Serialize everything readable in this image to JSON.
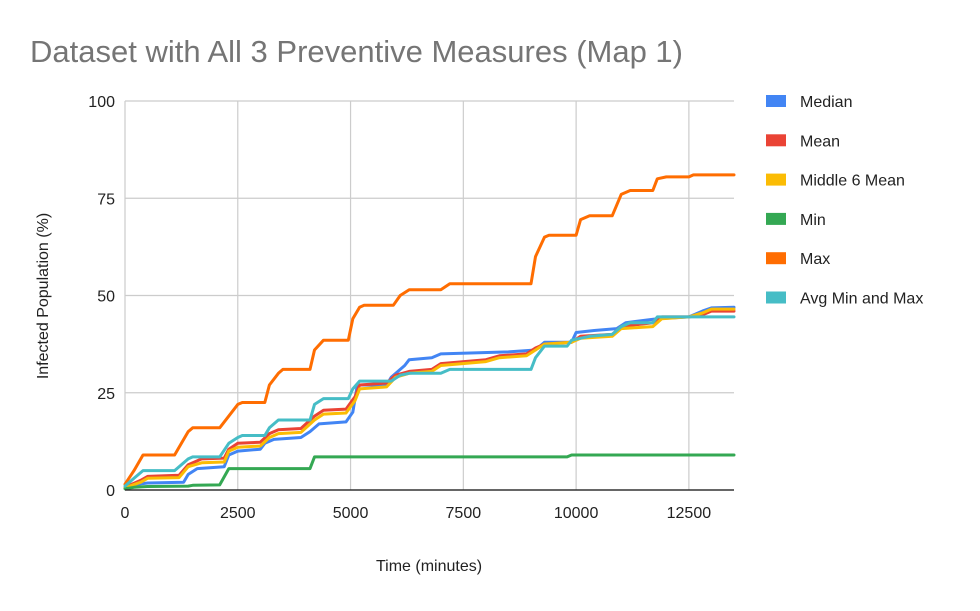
{
  "chart_data": {
    "type": "line",
    "title": "Dataset with All 3 Preventive Measures (Map 1)",
    "xlabel": "Time (minutes)",
    "ylabel": "Infected Population (%)",
    "xlim": [
      0,
      13500
    ],
    "ylim": [
      0,
      100
    ],
    "xticks": [
      0,
      2500,
      5000,
      7500,
      10000,
      12500
    ],
    "yticks": [
      0,
      25,
      50,
      75,
      100
    ],
    "grid": true,
    "legend_position": "right",
    "series": [
      {
        "name": "Median",
        "color": "#4285f4",
        "points": [
          [
            0,
            0.5
          ],
          [
            100,
            1
          ],
          [
            300,
            1.5
          ],
          [
            500,
            1.8
          ],
          [
            1300,
            2
          ],
          [
            1400,
            4
          ],
          [
            1600,
            5.5
          ],
          [
            2200,
            6
          ],
          [
            2300,
            9
          ],
          [
            2500,
            10
          ],
          [
            3000,
            10.5
          ],
          [
            3100,
            12
          ],
          [
            3300,
            13
          ],
          [
            3900,
            13.5
          ],
          [
            4100,
            15
          ],
          [
            4300,
            17
          ],
          [
            4900,
            17.5
          ],
          [
            5050,
            20
          ],
          [
            5150,
            27
          ],
          [
            5800,
            27
          ],
          [
            5900,
            29
          ],
          [
            6200,
            32
          ],
          [
            6300,
            33.5
          ],
          [
            6800,
            34
          ],
          [
            7000,
            35
          ],
          [
            8500,
            35.5
          ],
          [
            9100,
            36
          ],
          [
            9300,
            38
          ],
          [
            9900,
            38
          ],
          [
            10000,
            40.5
          ],
          [
            10400,
            41
          ],
          [
            10900,
            41.5
          ],
          [
            11100,
            43
          ],
          [
            11800,
            44
          ],
          [
            12500,
            44.5
          ],
          [
            12800,
            46
          ],
          [
            13000,
            46.8
          ],
          [
            13500,
            47
          ]
        ]
      },
      {
        "name": "Mean",
        "color": "#ea4335",
        "points": [
          [
            0,
            0.5
          ],
          [
            150,
            1.5
          ],
          [
            350,
            2.5
          ],
          [
            500,
            3.5
          ],
          [
            1200,
            3.8
          ],
          [
            1400,
            6.5
          ],
          [
            1700,
            8
          ],
          [
            2200,
            8.2
          ],
          [
            2300,
            10.5
          ],
          [
            2500,
            12
          ],
          [
            3000,
            12.3
          ],
          [
            3200,
            14.5
          ],
          [
            3400,
            15.5
          ],
          [
            3900,
            15.8
          ],
          [
            4200,
            19
          ],
          [
            4400,
            20.5
          ],
          [
            4900,
            20.8
          ],
          [
            5100,
            24
          ],
          [
            5200,
            27
          ],
          [
            5800,
            27.5
          ],
          [
            6000,
            29.5
          ],
          [
            6300,
            30.5
          ],
          [
            6800,
            31
          ],
          [
            7000,
            32.5
          ],
          [
            8000,
            33.5
          ],
          [
            8300,
            34.5
          ],
          [
            8900,
            35
          ],
          [
            9100,
            36.5
          ],
          [
            9300,
            37.5
          ],
          [
            9900,
            38
          ],
          [
            10100,
            39.5
          ],
          [
            10800,
            40
          ],
          [
            11000,
            42
          ],
          [
            11700,
            43
          ],
          [
            11900,
            44.5
          ],
          [
            12500,
            44.5
          ],
          [
            12800,
            45
          ],
          [
            13000,
            46
          ],
          [
            13500,
            46
          ]
        ]
      },
      {
        "name": "Middle 6 Mean",
        "color": "#fbbc04",
        "points": [
          [
            0,
            0.5
          ],
          [
            150,
            1.2
          ],
          [
            350,
            2
          ],
          [
            500,
            3
          ],
          [
            1200,
            3.2
          ],
          [
            1400,
            6
          ],
          [
            1700,
            7
          ],
          [
            2200,
            7.2
          ],
          [
            2300,
            10
          ],
          [
            2500,
            11
          ],
          [
            3000,
            11.3
          ],
          [
            3200,
            13.5
          ],
          [
            3400,
            14.5
          ],
          [
            3900,
            14.8
          ],
          [
            4200,
            18
          ],
          [
            4400,
            19.5
          ],
          [
            4900,
            19.8
          ],
          [
            5100,
            23
          ],
          [
            5200,
            26
          ],
          [
            5800,
            26.5
          ],
          [
            6000,
            29
          ],
          [
            6300,
            30
          ],
          [
            6800,
            30.5
          ],
          [
            7000,
            32
          ],
          [
            8000,
            33
          ],
          [
            8300,
            34
          ],
          [
            8900,
            34.5
          ],
          [
            9100,
            36
          ],
          [
            9300,
            37.5
          ],
          [
            9900,
            38
          ],
          [
            10100,
            39
          ],
          [
            10800,
            39.5
          ],
          [
            11000,
            41.5
          ],
          [
            11700,
            42
          ],
          [
            11900,
            44
          ],
          [
            12500,
            44.5
          ],
          [
            12800,
            45.5
          ],
          [
            13000,
            46.5
          ],
          [
            13500,
            46.5
          ]
        ]
      },
      {
        "name": "Min",
        "color": "#34a853",
        "points": [
          [
            0,
            0.3
          ],
          [
            200,
            0.7
          ],
          [
            500,
            0.9
          ],
          [
            1400,
            1
          ],
          [
            1500,
            1.2
          ],
          [
            2100,
            1.3
          ],
          [
            2300,
            5.5
          ],
          [
            4100,
            5.5
          ],
          [
            4200,
            8.5
          ],
          [
            9800,
            8.5
          ],
          [
            9900,
            9
          ],
          [
            13500,
            9
          ]
        ]
      },
      {
        "name": "Max",
        "color": "#ff6d01",
        "points": [
          [
            0,
            1.5
          ],
          [
            200,
            5
          ],
          [
            400,
            9
          ],
          [
            1100,
            9
          ],
          [
            1200,
            11
          ],
          [
            1400,
            15
          ],
          [
            1500,
            16
          ],
          [
            2100,
            16
          ],
          [
            2300,
            19
          ],
          [
            2500,
            22
          ],
          [
            2600,
            22.5
          ],
          [
            3100,
            22.5
          ],
          [
            3200,
            27
          ],
          [
            3400,
            30
          ],
          [
            3500,
            31
          ],
          [
            4100,
            31
          ],
          [
            4200,
            36
          ],
          [
            4400,
            38.5
          ],
          [
            4950,
            38.5
          ],
          [
            5050,
            44
          ],
          [
            5200,
            47
          ],
          [
            5300,
            47.5
          ],
          [
            5950,
            47.5
          ],
          [
            6100,
            50
          ],
          [
            6300,
            51.5
          ],
          [
            7000,
            51.5
          ],
          [
            7200,
            53
          ],
          [
            9000,
            53
          ],
          [
            9100,
            60
          ],
          [
            9300,
            65
          ],
          [
            9400,
            65.5
          ],
          [
            10000,
            65.5
          ],
          [
            10100,
            69.5
          ],
          [
            10300,
            70.5
          ],
          [
            10800,
            70.5
          ],
          [
            11000,
            76
          ],
          [
            11200,
            77
          ],
          [
            11700,
            77
          ],
          [
            11800,
            80
          ],
          [
            12000,
            80.5
          ],
          [
            12500,
            80.5
          ],
          [
            12600,
            81
          ],
          [
            13500,
            81
          ]
        ]
      },
      {
        "name": "Avg Min and Max",
        "color": "#46bdc6",
        "points": [
          [
            0,
            1
          ],
          [
            200,
            3
          ],
          [
            400,
            5
          ],
          [
            1100,
            5
          ],
          [
            1200,
            6
          ],
          [
            1400,
            8
          ],
          [
            1500,
            8.5
          ],
          [
            2100,
            8.5
          ],
          [
            2300,
            12
          ],
          [
            2500,
            13.5
          ],
          [
            2600,
            14
          ],
          [
            3100,
            14
          ],
          [
            3200,
            16
          ],
          [
            3400,
            18
          ],
          [
            3500,
            18
          ],
          [
            4100,
            18
          ],
          [
            4200,
            22
          ],
          [
            4400,
            23.5
          ],
          [
            4950,
            23.5
          ],
          [
            5050,
            26
          ],
          [
            5200,
            28
          ],
          [
            5300,
            28
          ],
          [
            5900,
            28
          ],
          [
            6100,
            29.5
          ],
          [
            6300,
            30
          ],
          [
            7000,
            30
          ],
          [
            7200,
            31
          ],
          [
            9000,
            31
          ],
          [
            9100,
            34
          ],
          [
            9300,
            37
          ],
          [
            9800,
            37
          ],
          [
            9900,
            38.5
          ],
          [
            10300,
            39.5
          ],
          [
            10800,
            40
          ],
          [
            11000,
            42
          ],
          [
            11200,
            43
          ],
          [
            11700,
            43
          ],
          [
            11800,
            44.5
          ],
          [
            12500,
            44.5
          ],
          [
            13500,
            44.5
          ]
        ]
      }
    ]
  }
}
